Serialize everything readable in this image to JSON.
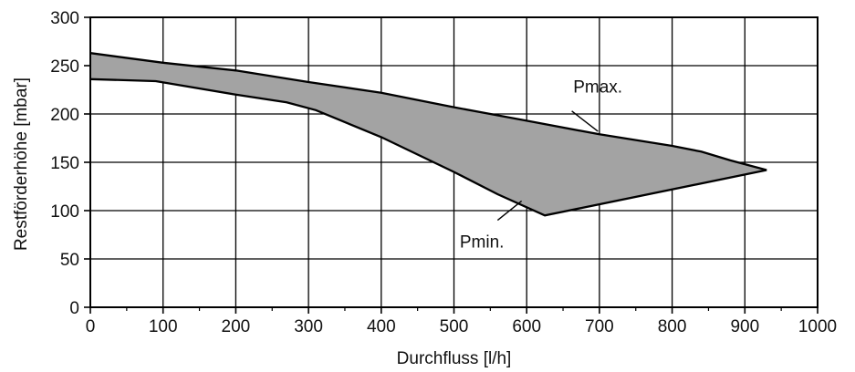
{
  "chart_data": {
    "type": "area",
    "title": "",
    "xlabel": "Durchfluss [l/h]",
    "ylabel": "Restförderhöhe [mbar]",
    "xlim": [
      0,
      1000
    ],
    "ylim": [
      0,
      300
    ],
    "x_ticks": [
      0,
      100,
      200,
      300,
      400,
      500,
      600,
      700,
      800,
      900,
      1000
    ],
    "y_ticks": [
      0,
      50,
      100,
      150,
      200,
      250,
      300
    ],
    "grid": true,
    "colors": {
      "fill": "#a3a3a3",
      "line": "#000000",
      "grid": "#000000"
    },
    "series": [
      {
        "name": "Pmax.",
        "x": [
          0,
          100,
          200,
          300,
          400,
          500,
          600,
          700,
          800,
          840,
          880,
          930
        ],
        "y": [
          263,
          253,
          245,
          233,
          222,
          207,
          193,
          179,
          167,
          161,
          152,
          142
        ]
      },
      {
        "name": "Pmin.",
        "x": [
          0,
          90,
          200,
          270,
          310,
          400,
          500,
          560,
          625,
          930
        ],
        "y": [
          236,
          234,
          220,
          212,
          204,
          176,
          140,
          117,
          95,
          142
        ]
      }
    ],
    "annotations": [
      {
        "text": "Pmax.",
        "series": "Pmax.",
        "label_at": [
          664,
          222
        ],
        "points_to": [
          698,
          182
        ],
        "anchor_at": [
          662,
          203
        ]
      },
      {
        "text": "Pmin.",
        "series": "Pmin.",
        "label_at": [
          508,
          62
        ],
        "points_to": [
          593,
          110
        ],
        "anchor_at": [
          560,
          90
        ]
      }
    ]
  }
}
